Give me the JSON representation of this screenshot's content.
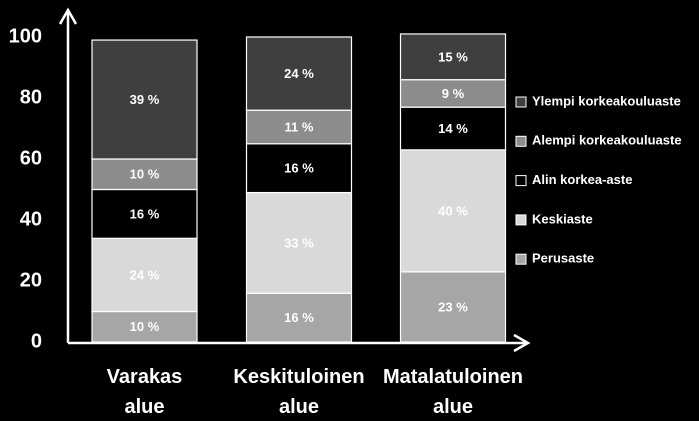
{
  "chart_data": {
    "type": "stacked_bar",
    "categories": [
      "Varakas alue",
      "Keskituloinen alue",
      "Matalatuloinen alue"
    ],
    "series": [
      {
        "name": "Perusaste",
        "color": "#a6a6a6",
        "values": [
          10,
          16,
          23
        ],
        "value_labels": [
          "10 %",
          "16 %",
          "23 %"
        ]
      },
      {
        "name": "Keskiaste",
        "color": "#d9d9d9",
        "values": [
          24,
          33,
          40
        ],
        "value_labels": [
          "24 %",
          "33 %",
          "40 %"
        ]
      },
      {
        "name": "Alin korkea-aste",
        "color": "#000000",
        "values": [
          16,
          16,
          14
        ],
        "value_labels": [
          "16 %",
          "16 %",
          "14 %"
        ]
      },
      {
        "name": "Alempi korkeakouluaste",
        "color": "#8c8c8c",
        "values": [
          10,
          11,
          9
        ],
        "value_labels": [
          "10 %",
          "11 %",
          "9 %"
        ]
      },
      {
        "name": "Ylempi korkeakouluaste",
        "color": "#3f3f3f",
        "values": [
          39,
          24,
          15
        ],
        "value_labels": [
          "39 %",
          "24 %",
          "15 %"
        ]
      }
    ],
    "ylim": [
      0,
      100
    ],
    "yticks": [
      0,
      20,
      40,
      60,
      80,
      100
    ],
    "grid": false,
    "legend": "right"
  }
}
